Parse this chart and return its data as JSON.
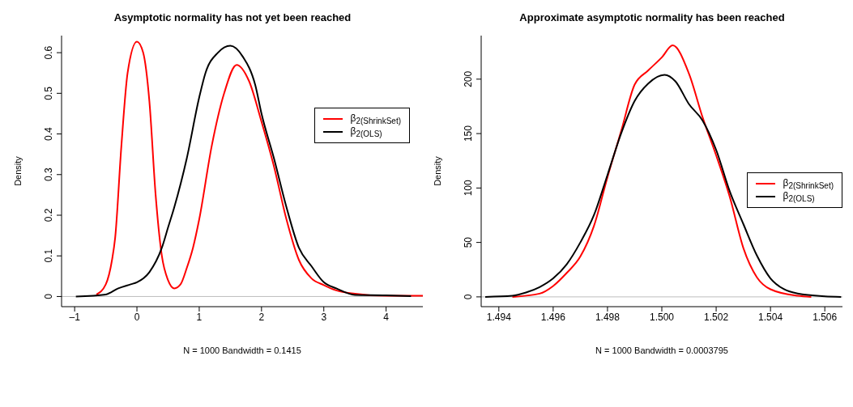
{
  "chart_data": [
    {
      "type": "line",
      "title": "Asymptotic normality has not yet been reached",
      "xlabel": "N = 1000   Bandwidth = 0.1415",
      "ylabel": "Density",
      "xlim": [
        -1.21,
        4.59
      ],
      "xticks": [
        {
          "value": -1,
          "label": "–1"
        },
        0,
        1,
        2,
        3,
        4
      ],
      "ylim": [
        -0.025,
        0.642
      ],
      "yticks": [
        0.0,
        0.1,
        0.2,
        0.3,
        0.4,
        0.5,
        0.6
      ],
      "grid": false,
      "legend": "top right",
      "marker": "none",
      "line_style": "solid",
      "ref_lines": [
        {
          "axis": "y",
          "value": 0,
          "color": "#bebebe"
        }
      ],
      "series": [
        {
          "name": "β$_{2(ShrinkSet)}$",
          "color": "#ff0000",
          "x": [
            -0.65,
            -0.5,
            -0.4,
            -0.35,
            -0.25,
            -0.15,
            0,
            0.1,
            0.2,
            0.3,
            0.4,
            0.5,
            0.6,
            0.7,
            0.8,
            0.9,
            1.0,
            1.2,
            1.4,
            1.6,
            1.8,
            2.0,
            2.2,
            2.4,
            2.6,
            2.8,
            3.0,
            3.2,
            3.5,
            4.0,
            4.59
          ],
          "values": [
            0.005,
            0.03,
            0.09,
            0.144,
            0.37,
            0.55,
            0.627,
            0.6,
            0.48,
            0.25,
            0.1,
            0.04,
            0.02,
            0.03,
            0.07,
            0.12,
            0.19,
            0.37,
            0.5,
            0.57,
            0.53,
            0.43,
            0.32,
            0.19,
            0.09,
            0.045,
            0.028,
            0.015,
            0.007,
            0.002,
            0.002
          ]
        },
        {
          "name": "β$_{2(OLS)}$",
          "color": "#000000",
          "x": [
            -0.98,
            -0.5,
            -0.3,
            -0.1,
            0,
            0.2,
            0.4,
            0.5,
            0.6,
            0.8,
            1.0,
            1.1,
            1.3,
            1.5,
            1.7,
            1.9,
            2.0,
            2.2,
            2.4,
            2.6,
            2.8,
            3.0,
            3.2,
            3.5,
            4.0,
            4.4
          ],
          "values": [
            0,
            0.005,
            0.02,
            0.03,
            0.035,
            0.06,
            0.12,
            0.17,
            0.22,
            0.34,
            0.49,
            0.55,
            0.6,
            0.617,
            0.59,
            0.52,
            0.45,
            0.34,
            0.22,
            0.12,
            0.075,
            0.035,
            0.02,
            0.004,
            0.003,
            0.001
          ]
        }
      ]
    },
    {
      "type": "line",
      "title": "Approximate asymptotic normality has been reached",
      "xlabel": "N = 1000   Bandwidth = 0.0003795",
      "ylabel": "Density",
      "xlim": [
        1.49335,
        1.50665
      ],
      "xticks": [
        1.494,
        1.496,
        1.498,
        {
          "value": 1.5,
          "label": "1.500"
        },
        1.502,
        1.504,
        1.506
      ],
      "ylim": [
        -9,
        240
      ],
      "yticks": [
        0,
        50,
        100,
        150,
        200
      ],
      "grid": false,
      "legend": "right",
      "marker": "none",
      "line_style": "solid",
      "ref_lines": [
        {
          "axis": "y",
          "value": 0,
          "color": "#bebebe"
        }
      ],
      "series": [
        {
          "name": "β$_{2(ShrinkSet)}$",
          "color": "#ff0000",
          "x": [
            1.4945,
            1.4955,
            1.496,
            1.4965,
            1.497,
            1.4975,
            1.498,
            1.4985,
            1.499,
            1.4995,
            1.5,
            1.5004,
            1.501,
            1.5015,
            1.502,
            1.5025,
            1.503,
            1.5035,
            1.504,
            1.505,
            1.5055
          ],
          "values": [
            0,
            3,
            10,
            22,
            37,
            65,
            110,
            152,
            195,
            208,
            220,
            231,
            205,
            165,
            130,
            92,
            45,
            18,
            7,
            1,
            0
          ]
        },
        {
          "name": "β$_{2(OLS)}$",
          "color": "#000000",
          "x": [
            1.4935,
            1.4945,
            1.495,
            1.4955,
            1.496,
            1.4965,
            1.497,
            1.4975,
            1.498,
            1.4985,
            1.499,
            1.4995,
            1.5001,
            1.5005,
            1.501,
            1.5015,
            1.502,
            1.5025,
            1.503,
            1.5035,
            1.504,
            1.5045,
            1.505,
            1.506,
            1.5066
          ],
          "values": [
            0,
            1,
            4,
            9,
            17,
            30,
            50,
            75,
            112,
            150,
            180,
            196,
            204,
            198,
            177,
            162,
            135,
            97,
            67,
            38,
            17,
            7,
            3,
            0.5,
            0
          ]
        }
      ]
    }
  ]
}
